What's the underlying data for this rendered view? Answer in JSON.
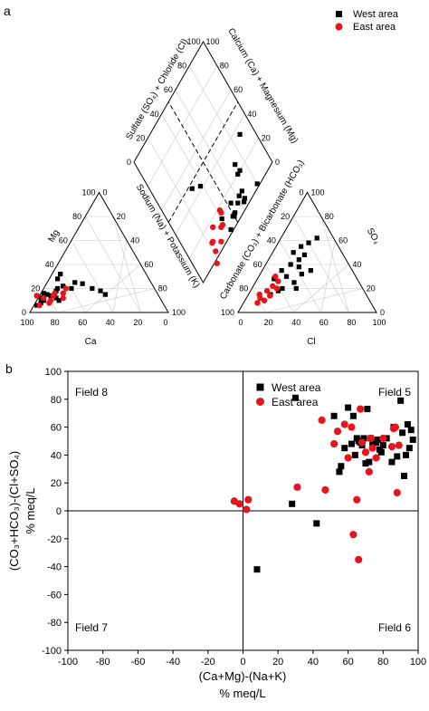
{
  "panel_a": {
    "label": "a",
    "legend": [
      {
        "name": "West area",
        "marker": "square",
        "color": "#000000"
      },
      {
        "name": "East area",
        "marker": "circle",
        "color": "#e8141c"
      }
    ],
    "diamond_labels": {
      "upper_left": "Sulfate (SO₄) + Chloride (Cl)",
      "upper_right": "Calcium (Ca) + Magnesium (Mg)",
      "lower_left": "Sodium (Na) + Potassium (K)",
      "lower_right": "Carbonate (CO₃) + Bicarbonate (HCO₃)"
    },
    "cation_labels": {
      "left": "Mg",
      "bottom": "Ca"
    },
    "anion_labels": {
      "right": "SO₄",
      "bottom": "Cl"
    },
    "ticks": [
      "100",
      "80",
      "60",
      "40",
      "20",
      "0"
    ]
  },
  "chart_data": [
    {
      "type": "scatter",
      "panel": "a",
      "subtype": "piper-diagram",
      "series": [
        {
          "name": "West area",
          "marker": "square",
          "color": "#000000"
        },
        {
          "name": "East area",
          "marker": "circle",
          "color": "#e8141c"
        }
      ],
      "cation_triangle": {
        "axes": [
          "Ca",
          "Mg",
          "Na+K"
        ],
        "West area": [
          [
            85,
            10
          ],
          [
            78,
            14
          ],
          [
            72,
            18
          ],
          [
            80,
            15
          ],
          [
            88,
            8
          ],
          [
            70,
            20
          ],
          [
            65,
            22
          ],
          [
            75,
            12
          ],
          [
            82,
            16
          ],
          [
            60,
            20
          ],
          [
            55,
            25
          ],
          [
            50,
            24
          ],
          [
            45,
            20
          ],
          [
            40,
            18
          ],
          [
            38,
            15
          ],
          [
            66,
            28
          ],
          [
            62,
            32
          ],
          [
            92,
            6
          ],
          [
            86,
            12
          ],
          [
            74,
            10
          ]
        ],
        "East area": [
          [
            90,
            6
          ],
          [
            84,
            12
          ],
          [
            80,
            10
          ],
          [
            76,
            14
          ],
          [
            70,
            12
          ],
          [
            68,
            16
          ],
          [
            88,
            14
          ],
          [
            82,
            8
          ],
          [
            74,
            16
          ],
          [
            64,
            20
          ]
        ]
      },
      "anion_triangle": {
        "axes": [
          "Cl",
          "SO4",
          "HCO3"
        ],
        "West area": [
          [
            20,
            30
          ],
          [
            18,
            40
          ],
          [
            22,
            44
          ],
          [
            15,
            50
          ],
          [
            25,
            38
          ],
          [
            30,
            32
          ],
          [
            12,
            28
          ],
          [
            28,
            25
          ],
          [
            22,
            20
          ],
          [
            18,
            55
          ],
          [
            35,
            35
          ],
          [
            24,
            48
          ],
          [
            26,
            62
          ],
          [
            20,
            18
          ],
          [
            16,
            15
          ],
          [
            32,
            20
          ],
          [
            14,
            35
          ],
          [
            22,
            58
          ]
        ],
        "East area": [
          [
            10,
            12
          ],
          [
            12,
            18
          ],
          [
            14,
            22
          ],
          [
            8,
            15
          ],
          [
            16,
            26
          ],
          [
            12,
            30
          ],
          [
            10,
            8
          ],
          [
            18,
            20
          ],
          [
            14,
            10
          ],
          [
            16,
            14
          ]
        ]
      }
    },
    {
      "type": "scatter",
      "panel": "b",
      "xlabel": [
        "(Ca+Mg)-(Na+K)",
        "% meq/L"
      ],
      "ylabel": [
        "(CO₃+HCO₃)-(Cl+SO₄)",
        "% meq/L"
      ],
      "xlim": [
        -100,
        100
      ],
      "ylim": [
        -100,
        100
      ],
      "xticks": [
        -100,
        -80,
        -60,
        -40,
        -20,
        0,
        20,
        40,
        60,
        80,
        100
      ],
      "yticks": [
        -100,
        -80,
        -60,
        -40,
        -20,
        0,
        20,
        40,
        60,
        80,
        100
      ],
      "field_labels": [
        {
          "text": "Field 8",
          "corner": "top-left"
        },
        {
          "text": "Field 5",
          "corner": "top-right"
        },
        {
          "text": "Field 7",
          "corner": "bottom-left"
        },
        {
          "text": "Field 6",
          "corner": "bottom-right"
        }
      ],
      "legend_position": "upper-center-right",
      "series": [
        {
          "name": "West area",
          "marker": "square",
          "color": "#000000",
          "points": [
            [
              8,
              -42
            ],
            [
              28,
              5
            ],
            [
              30,
              81
            ],
            [
              42,
              -9
            ],
            [
              52,
              68
            ],
            [
              55,
              28
            ],
            [
              56,
              32
            ],
            [
              58,
              45
            ],
            [
              60,
              74
            ],
            [
              62,
              48
            ],
            [
              63,
              68
            ],
            [
              64,
              40
            ],
            [
              65,
              52
            ],
            [
              66,
              50
            ],
            [
              67,
              49
            ],
            [
              68,
              47
            ],
            [
              69,
              52
            ],
            [
              70,
              34
            ],
            [
              71,
              73
            ],
            [
              72,
              35
            ],
            [
              73,
              52
            ],
            [
              74,
              48
            ],
            [
              75,
              50
            ],
            [
              76,
              49
            ],
            [
              77,
              51
            ],
            [
              78,
              44
            ],
            [
              79,
              42
            ],
            [
              80,
              47
            ],
            [
              82,
              52
            ],
            [
              85,
              35
            ],
            [
              86,
              60
            ],
            [
              88,
              39
            ],
            [
              90,
              79
            ],
            [
              91,
              56
            ],
            [
              92,
              25
            ],
            [
              93,
              40
            ],
            [
              94,
              62
            ],
            [
              96,
              58
            ],
            [
              97,
              51
            ],
            [
              95,
              45
            ]
          ]
        },
        {
          "name": "East area",
          "marker": "circle",
          "color": "#e8141c",
          "points": [
            [
              -5,
              7
            ],
            [
              -2,
              5
            ],
            [
              2,
              1
            ],
            [
              3,
              8
            ],
            [
              31,
              17
            ],
            [
              45,
              65
            ],
            [
              47,
              15
            ],
            [
              52,
              48
            ],
            [
              54,
              57
            ],
            [
              58,
              62
            ],
            [
              60,
              38
            ],
            [
              62,
              60
            ],
            [
              63,
              -17
            ],
            [
              65,
              8
            ],
            [
              66,
              -35
            ],
            [
              67,
              73
            ],
            [
              68,
              49
            ],
            [
              70,
              42
            ],
            [
              72,
              28
            ],
            [
              73,
              52
            ],
            [
              74,
              45
            ],
            [
              76,
              38
            ],
            [
              80,
              52
            ],
            [
              85,
              46
            ],
            [
              86,
              59
            ],
            [
              87,
              60
            ],
            [
              88,
              13
            ],
            [
              89,
              47
            ]
          ]
        }
      ]
    }
  ]
}
